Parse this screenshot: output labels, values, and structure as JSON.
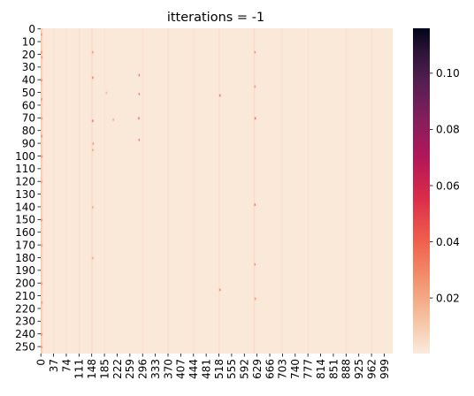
{
  "chart_data": {
    "type": "heatmap",
    "title": "itterations = -1",
    "xlabel": "",
    "ylabel": "",
    "x_tick_labels": [
      "0",
      "37",
      "74",
      "111",
      "148",
      "185",
      "222",
      "259",
      "296",
      "333",
      "370",
      "407",
      "444",
      "481",
      "518",
      "555",
      "592",
      "629",
      "666",
      "703",
      "740",
      "777",
      "814",
      "851",
      "888",
      "925",
      "962",
      "999"
    ],
    "y_tick_labels": [
      "0",
      "10",
      "20",
      "30",
      "40",
      "50",
      "60",
      "70",
      "80",
      "90",
      "100",
      "110",
      "120",
      "130",
      "140",
      "150",
      "160",
      "170",
      "180",
      "190",
      "200",
      "210",
      "220",
      "230",
      "240",
      "250"
    ],
    "n_rows": 256,
    "n_cols": 1024,
    "x_tick_step": 37,
    "y_tick_step": 10,
    "colorbar": {
      "range": [
        0.0002,
        0.116
      ],
      "tick_labels": [
        "0.02",
        "0.04",
        "0.06",
        "0.08",
        "0.10"
      ],
      "ticks": [
        0.02,
        0.04,
        0.06,
        0.08,
        0.1
      ],
      "colormap": "rocket_r"
    },
    "baseline_value": 0.001,
    "column_stripes": [
      {
        "col": 0,
        "value": 0.012
      },
      {
        "col": 2,
        "value": 0.008
      },
      {
        "col": 4,
        "value": 0.005
      },
      {
        "col": 37,
        "value": 0.003
      },
      {
        "col": 74,
        "value": 0.003
      },
      {
        "col": 111,
        "value": 0.004
      },
      {
        "col": 148,
        "value": 0.006
      },
      {
        "col": 185,
        "value": 0.003
      },
      {
        "col": 296,
        "value": 0.004
      },
      {
        "col": 370,
        "value": 0.003
      },
      {
        "col": 444,
        "value": 0.003
      },
      {
        "col": 518,
        "value": 0.004
      },
      {
        "col": 620,
        "value": 0.006
      },
      {
        "col": 700,
        "value": 0.003
      },
      {
        "col": 777,
        "value": 0.003
      },
      {
        "col": 888,
        "value": 0.003
      },
      {
        "col": 962,
        "value": 0.003
      }
    ],
    "hot_cells": [
      {
        "row": 4,
        "col": 1,
        "value": 0.03
      },
      {
        "row": 18,
        "col": 1,
        "value": 0.035
      },
      {
        "row": 22,
        "col": 2,
        "value": 0.03
      },
      {
        "row": 40,
        "col": 1,
        "value": 0.04
      },
      {
        "row": 55,
        "col": 1,
        "value": 0.035
      },
      {
        "row": 70,
        "col": 2,
        "value": 0.03
      },
      {
        "row": 84,
        "col": 1,
        "value": 0.04
      },
      {
        "row": 100,
        "col": 2,
        "value": 0.035
      },
      {
        "row": 120,
        "col": 1,
        "value": 0.03
      },
      {
        "row": 150,
        "col": 1,
        "value": 0.04
      },
      {
        "row": 170,
        "col": 2,
        "value": 0.03
      },
      {
        "row": 200,
        "col": 1,
        "value": 0.035
      },
      {
        "row": 215,
        "col": 2,
        "value": 0.03
      },
      {
        "row": 240,
        "col": 1,
        "value": 0.04
      },
      {
        "row": 250,
        "col": 1,
        "value": 0.035
      },
      {
        "row": 18,
        "col": 150,
        "value": 0.035
      },
      {
        "row": 38,
        "col": 150,
        "value": 0.045
      },
      {
        "row": 72,
        "col": 150,
        "value": 0.05
      },
      {
        "row": 90,
        "col": 151,
        "value": 0.035
      },
      {
        "row": 95,
        "col": 150,
        "value": 0.03
      },
      {
        "row": 140,
        "col": 150,
        "value": 0.03
      },
      {
        "row": 180,
        "col": 150,
        "value": 0.03
      },
      {
        "row": 36,
        "col": 285,
        "value": 0.045
      },
      {
        "row": 51,
        "col": 285,
        "value": 0.04
      },
      {
        "row": 70,
        "col": 284,
        "value": 0.05
      },
      {
        "row": 87,
        "col": 285,
        "value": 0.04
      },
      {
        "row": 71,
        "col": 210,
        "value": 0.025
      },
      {
        "row": 50,
        "col": 190,
        "value": 0.02
      },
      {
        "row": 52,
        "col": 520,
        "value": 0.05
      },
      {
        "row": 205,
        "col": 520,
        "value": 0.04
      },
      {
        "row": 18,
        "col": 622,
        "value": 0.035
      },
      {
        "row": 45,
        "col": 622,
        "value": 0.03
      },
      {
        "row": 70,
        "col": 623,
        "value": 0.05
      },
      {
        "row": 138,
        "col": 622,
        "value": 0.04
      },
      {
        "row": 185,
        "col": 622,
        "value": 0.035
      },
      {
        "row": 212,
        "col": 623,
        "value": 0.035
      }
    ]
  }
}
